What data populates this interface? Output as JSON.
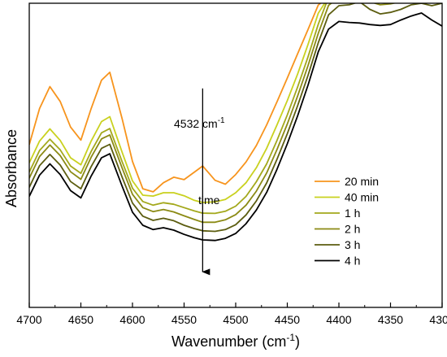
{
  "chart_data": {
    "type": "line",
    "xlabel": "Wavenumber (cm",
    "xlabel_sup": "-1",
    "xlabel_end": ")",
    "ylabel": "Absorbance",
    "xlim": [
      4700,
      4300
    ],
    "x_reversed": true,
    "ylim": [
      0,
      1
    ],
    "y_ticks_labeled": false,
    "grid": false,
    "legend_position": "right",
    "x_ticks": [
      4700,
      4650,
      4600,
      4550,
      4500,
      4450,
      4400,
      4350,
      4300
    ],
    "annotation": {
      "label": "4532 cm",
      "label_sup": "-1",
      "arrow_label": "time",
      "x": 4532,
      "arrow_from": 0.72,
      "arrow_to": 0.09
    },
    "x": [
      4700,
      4690,
      4680,
      4670,
      4660,
      4650,
      4640,
      4630,
      4622,
      4610,
      4600,
      4590,
      4580,
      4570,
      4560,
      4550,
      4540,
      4532,
      4520,
      4510,
      4500,
      4490,
      4480,
      4470,
      4460,
      4450,
      4440,
      4430,
      4420,
      4410,
      4400,
      4390,
      4380,
      4370,
      4360,
      4350,
      4340,
      4330,
      4320,
      4310,
      4300
    ],
    "series": [
      {
        "name": "20 min",
        "color": "#f7941d",
        "values": [
          0.535,
          0.654,
          0.726,
          0.677,
          0.593,
          0.55,
          0.654,
          0.747,
          0.773,
          0.62,
          0.48,
          0.39,
          0.38,
          0.41,
          0.428,
          0.42,
          0.445,
          0.465,
          0.418,
          0.405,
          0.437,
          0.478,
          0.532,
          0.6,
          0.676,
          0.754,
          0.834,
          0.913,
          0.994,
          1.02,
          1.02,
          1.02,
          1.02,
          1.02,
          1.02,
          1.02,
          1.02,
          1.02,
          1.02,
          1.02,
          1.02
        ]
      },
      {
        "name": "40 min",
        "color": "#c9d11f",
        "values": [
          0.475,
          0.547,
          0.587,
          0.549,
          0.492,
          0.469,
          0.547,
          0.611,
          0.627,
          0.51,
          0.416,
          0.369,
          0.366,
          0.377,
          0.377,
          0.367,
          0.352,
          0.345,
          0.347,
          0.355,
          0.377,
          0.41,
          0.459,
          0.523,
          0.6,
          0.68,
          0.767,
          0.864,
          0.967,
          1.02,
          1.02,
          1.02,
          1.02,
          1.02,
          1.02,
          1.02,
          1.02,
          1.02,
          1.02,
          1.02,
          1.02
        ]
      },
      {
        "name": "1 h",
        "color": "#a3a81b",
        "values": [
          0.445,
          0.516,
          0.553,
          0.518,
          0.465,
          0.441,
          0.513,
          0.574,
          0.588,
          0.479,
          0.392,
          0.348,
          0.336,
          0.344,
          0.339,
          0.328,
          0.317,
          0.31,
          0.309,
          0.316,
          0.333,
          0.365,
          0.413,
          0.472,
          0.549,
          0.633,
          0.725,
          0.823,
          0.931,
          1.02,
          1.02,
          1.02,
          1.02,
          1.02,
          1.02,
          1.02,
          1.02,
          1.02,
          1.02,
          1.02,
          1.02
        ]
      },
      {
        "name": "2 h",
        "color": "#8b8a14",
        "values": [
          0.425,
          0.496,
          0.534,
          0.499,
          0.446,
          0.421,
          0.494,
          0.554,
          0.567,
          0.458,
          0.372,
          0.328,
          0.315,
          0.322,
          0.314,
          0.301,
          0.289,
          0.28,
          0.28,
          0.288,
          0.305,
          0.336,
          0.382,
          0.442,
          0.519,
          0.603,
          0.695,
          0.794,
          0.901,
          0.993,
          1.02,
          1.02,
          1.02,
          1.005,
          0.995,
          0.998,
          1.005,
          1.02,
          1.02,
          1.02,
          1.02
        ]
      },
      {
        "name": "3 h",
        "color": "#5c5d10",
        "values": [
          0.395,
          0.466,
          0.503,
          0.468,
          0.414,
          0.39,
          0.463,
          0.523,
          0.536,
          0.428,
          0.343,
          0.3,
          0.286,
          0.293,
          0.285,
          0.27,
          0.259,
          0.252,
          0.25,
          0.256,
          0.272,
          0.304,
          0.35,
          0.409,
          0.487,
          0.571,
          0.663,
          0.762,
          0.87,
          0.962,
          0.992,
          0.995,
          1.005,
          0.98,
          0.965,
          0.97,
          0.98,
          0.995,
          1.0,
          0.992,
          1.0
        ]
      },
      {
        "name": "4 h",
        "color": "#000000",
        "values": [
          0.365,
          0.435,
          0.472,
          0.437,
          0.384,
          0.36,
          0.432,
          0.492,
          0.505,
          0.398,
          0.313,
          0.27,
          0.256,
          0.262,
          0.254,
          0.24,
          0.229,
          0.222,
          0.22,
          0.227,
          0.243,
          0.275,
          0.32,
          0.378,
          0.454,
          0.538,
          0.63,
          0.73,
          0.84,
          0.915,
          0.94,
          0.937,
          0.935,
          0.93,
          0.927,
          0.93,
          0.945,
          0.958,
          0.968,
          0.945,
          0.925
        ]
      }
    ]
  }
}
